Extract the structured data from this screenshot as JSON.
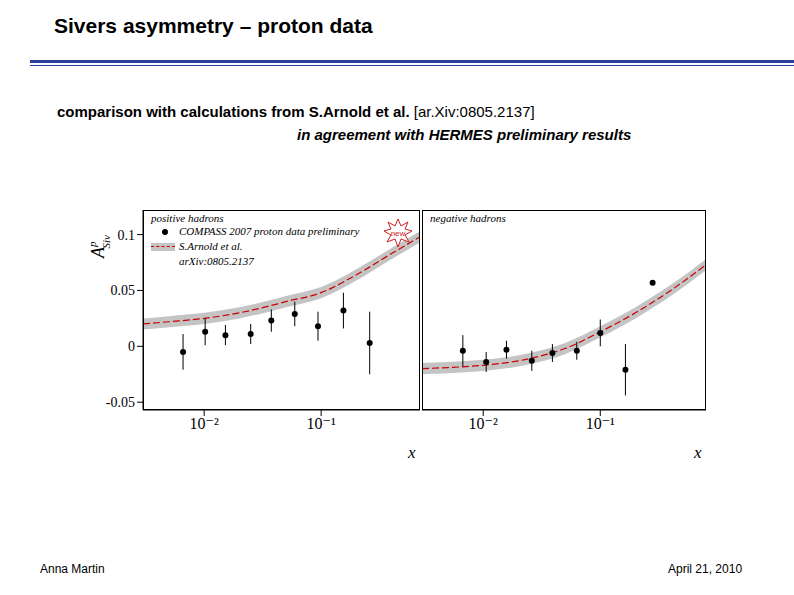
{
  "slide": {
    "title": "Sivers asymmetry – proton data",
    "subtitle_bold": "comparison with calculations from S.Arnold et al.",
    "subtitle_ref": "[ar.Xiv:0805.2137]",
    "subtitle_2": "in agreement with HERMES preliminary results",
    "author": "Anna Martin",
    "date": "April 21, 2010",
    "ylabel": {
      "base": "A",
      "sup": "p",
      "sub": "Siv"
    },
    "badge": "new"
  },
  "chart_data": [
    {
      "type": "scatter",
      "title": "positive hadrons",
      "xlabel": "x",
      "log": "x",
      "xlim": [
        0.003,
        0.7
      ],
      "ylim": [
        -0.057,
        0.122
      ],
      "xticks": [
        {
          "value": 0.01,
          "label": "10⁻²"
        },
        {
          "value": 0.1,
          "label": "10⁻¹"
        }
      ],
      "yticks": [
        -0.05,
        0,
        0.05,
        0.1
      ],
      "series": [
        {
          "name": "COMPASS 2007 proton data preliminary",
          "type": "scatter",
          "color": "#000000",
          "marker": "circle",
          "x": [
            0.0066,
            0.0102,
            0.0152,
            0.025,
            0.0375,
            0.0595,
            0.094,
            0.155,
            0.26
          ],
          "values": [
            -0.005,
            0.013,
            0.01,
            0.011,
            0.023,
            0.029,
            0.018,
            0.032,
            0.003
          ],
          "error": [
            0.016,
            0.012,
            0.009,
            0.009,
            0.01,
            0.011,
            0.013,
            0.016,
            0.028
          ]
        },
        {
          "name": "S.Arnold et al.",
          "citation": "arXiv:0805.2137",
          "type": "line",
          "color": "#cc0000",
          "line_style": "dashed",
          "x": [
            0.003,
            0.005,
            0.01,
            0.02,
            0.03,
            0.05,
            0.1,
            0.2,
            0.4,
            0.7
          ],
          "values": [
            0.02,
            0.022,
            0.025,
            0.03,
            0.034,
            0.04,
            0.048,
            0.064,
            0.083,
            0.098
          ],
          "band_low": [
            0.015,
            0.017,
            0.02,
            0.025,
            0.029,
            0.035,
            0.043,
            0.059,
            0.078,
            0.093
          ],
          "band_high": [
            0.025,
            0.027,
            0.03,
            0.035,
            0.039,
            0.045,
            0.053,
            0.069,
            0.088,
            0.103
          ]
        }
      ]
    },
    {
      "type": "scatter",
      "title": "negative hadrons",
      "xlabel": "x",
      "log": "x",
      "xlim": [
        0.003,
        0.8
      ],
      "ylim": [
        -0.057,
        0.122
      ],
      "tick_labels": "x",
      "xticks": [
        {
          "value": 0.01,
          "label": "10⁻²"
        },
        {
          "value": 0.1,
          "label": "10⁻¹"
        }
      ],
      "series": [
        {
          "name": "COMPASS 2007 proton data preliminary",
          "type": "scatter",
          "color": "#000000",
          "marker": "circle",
          "x": [
            0.0067,
            0.0106,
            0.0158,
            0.026,
            0.039,
            0.063,
            0.1,
            0.164,
            0.28
          ],
          "values": [
            -0.004,
            -0.014,
            -0.003,
            -0.013,
            -0.006,
            -0.004,
            0.012,
            -0.021,
            0.057
          ],
          "error": [
            0.014,
            0.009,
            0.008,
            0.009,
            0.008,
            0.008,
            0.012,
            0.023,
            0.002
          ]
        },
        {
          "name": "S.Arnold et al.",
          "type": "line",
          "color": "#cc0000",
          "line_style": "dashed",
          "x": [
            0.003,
            0.005,
            0.01,
            0.02,
            0.03,
            0.05,
            0.1,
            0.2,
            0.4,
            0.8
          ],
          "values": [
            -0.02,
            -0.019,
            -0.017,
            -0.013,
            -0.009,
            -0.002,
            0.013,
            0.03,
            0.05,
            0.073
          ],
          "band_low": [
            -0.025,
            -0.024,
            -0.022,
            -0.018,
            -0.014,
            -0.007,
            0.008,
            0.025,
            0.045,
            0.068
          ],
          "band_high": [
            -0.015,
            -0.014,
            -0.012,
            -0.008,
            -0.004,
            0.003,
            0.018,
            0.035,
            0.055,
            0.078
          ]
        }
      ]
    }
  ]
}
